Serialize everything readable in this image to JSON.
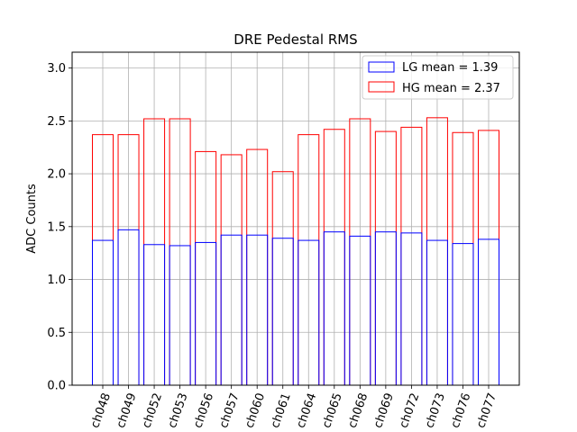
{
  "chart_data": {
    "type": "bar",
    "title": "DRE Pedestal RMS",
    "xlabel": "",
    "ylabel": "ADC Counts",
    "ylim": [
      0,
      3.15
    ],
    "yticks": [
      "0.0",
      "0.5",
      "1.0",
      "1.5",
      "2.0",
      "2.5",
      "3.0"
    ],
    "grid": true,
    "legend_position": "top-right",
    "categories": [
      "ch048",
      "ch049",
      "ch052",
      "ch053",
      "ch056",
      "ch057",
      "ch060",
      "ch061",
      "ch064",
      "ch065",
      "ch068",
      "ch069",
      "ch072",
      "ch073",
      "ch076",
      "ch077"
    ],
    "series": [
      {
        "name": "HG",
        "legend_label": "HG mean = 2.37",
        "color": "#ff0000",
        "values": [
          2.37,
          2.37,
          2.52,
          2.52,
          2.21,
          2.18,
          2.23,
          2.02,
          2.37,
          2.42,
          2.52,
          2.4,
          2.44,
          2.53,
          2.39,
          2.41
        ]
      },
      {
        "name": "LG",
        "legend_label": "LG mean = 1.39",
        "color": "#0000ff",
        "values": [
          1.37,
          1.47,
          1.33,
          1.32,
          1.35,
          1.42,
          1.42,
          1.39,
          1.37,
          1.45,
          1.41,
          1.45,
          1.44,
          1.37,
          1.34,
          1.38
        ]
      }
    ]
  }
}
